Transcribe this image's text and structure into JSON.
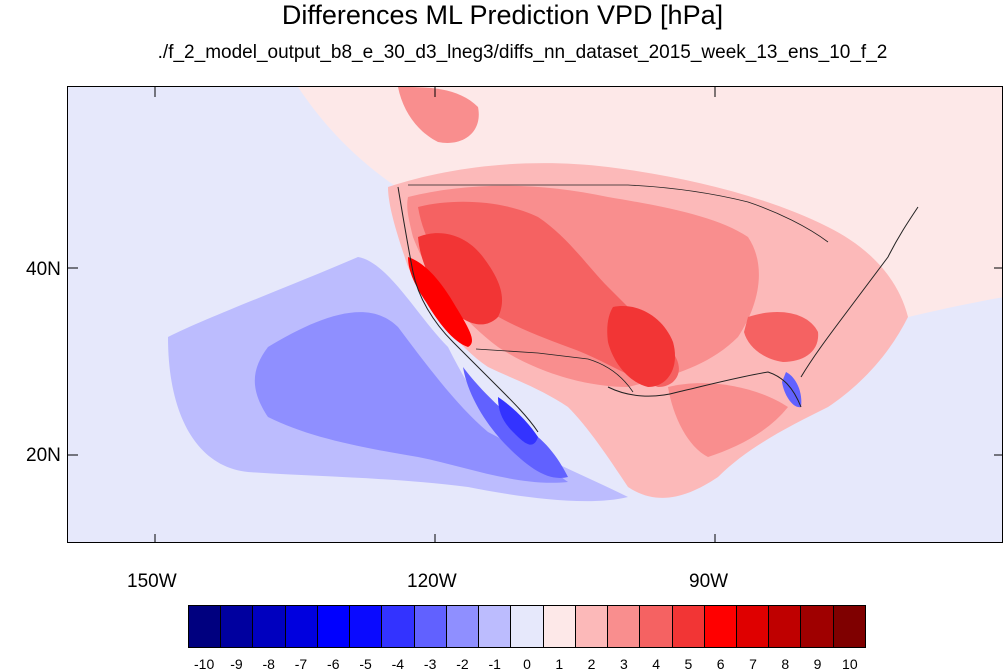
{
  "title": "Differences ML Prediction VPD [hPa]",
  "subtitle": "./f_2_model_output_b8_e_30_d3_lneg3/diffs_nn_dataset_2015_week_13_ens_10_f_2",
  "axes": {
    "lat_labels": [
      "40N",
      "20N"
    ],
    "lon_labels": [
      "150W",
      "120W",
      "90W"
    ],
    "lon_range_deg": [
      -159.3,
      -59.3
    ],
    "lat_range_deg": [
      10.9,
      59.5
    ]
  },
  "colorbar": {
    "labels": [
      "-10",
      "-9",
      "-8",
      "-7",
      "-6",
      "-5",
      "-4",
      "-3",
      "-2",
      "-1",
      "0",
      "1",
      "2",
      "3",
      "4",
      "5",
      "6",
      "7",
      "8",
      "9",
      "10"
    ],
    "colors": [
      "#00007f",
      "#00009f",
      "#0000bf",
      "#0000df",
      "#0000ff",
      "#0a0aff",
      "#3333ff",
      "#6161ff",
      "#8f8fff",
      "#bcbcfe",
      "#e6e8fb",
      "#fde8e8",
      "#fcb9b9",
      "#f98e8e",
      "#f56262",
      "#f23535",
      "#ff0000",
      "#df0000",
      "#bf0000",
      "#9f0000",
      "#7f0000"
    ]
  },
  "field": {
    "background_color": "#e6e8fb",
    "land_color": "#fde8e8",
    "coastline_color": "#222222"
  }
}
